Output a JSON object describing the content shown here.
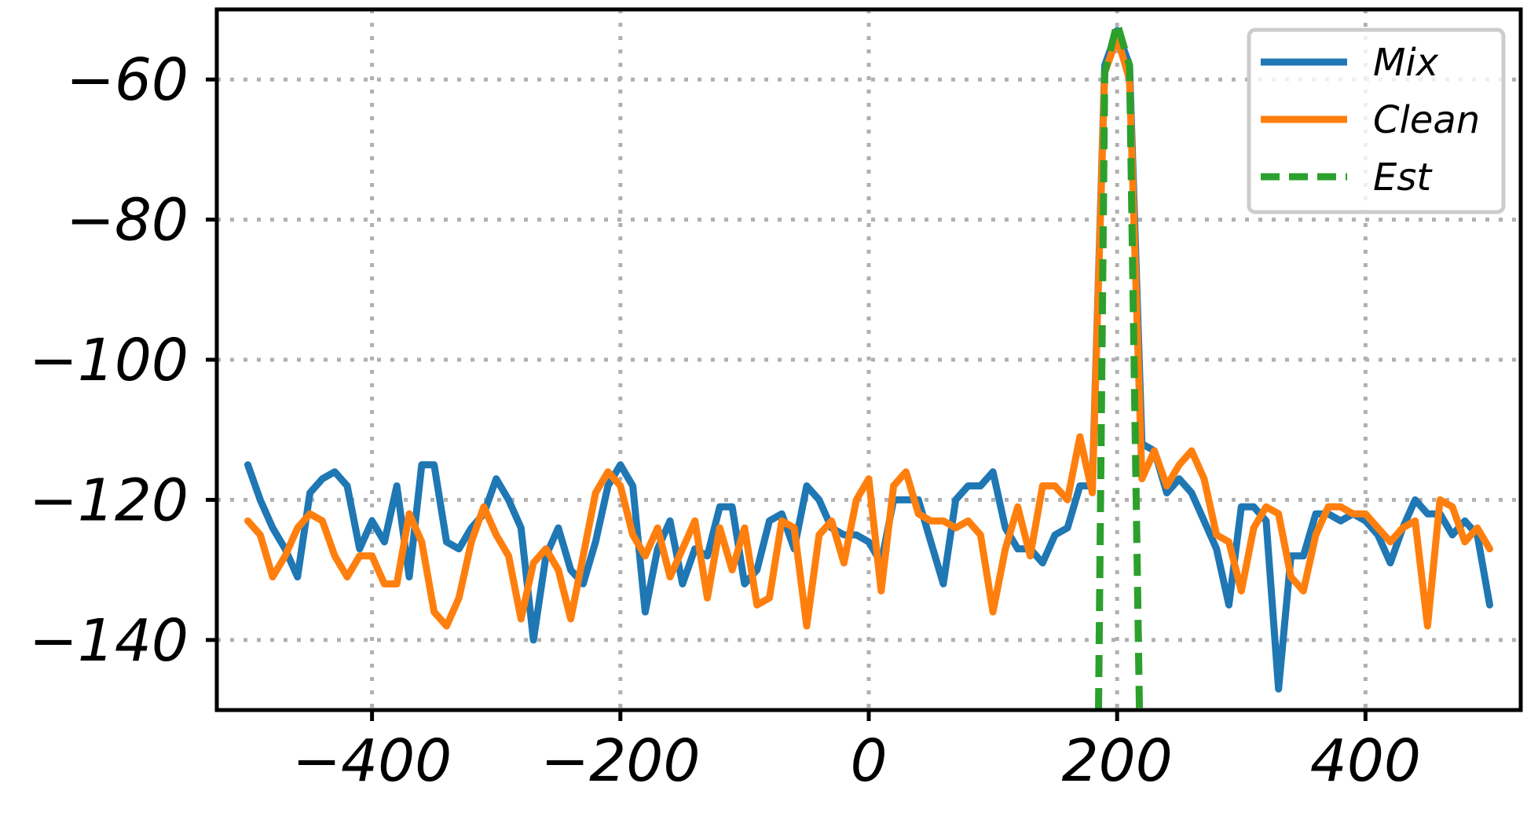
{
  "chart_data": {
    "type": "line",
    "title": "",
    "xlabel": "",
    "ylabel": "",
    "xlim": [
      -525,
      525
    ],
    "ylim": [
      -150,
      -50
    ],
    "xticks": [
      -400,
      -200,
      0,
      200,
      400
    ],
    "yticks": [
      -140,
      -120,
      -100,
      -80,
      -60
    ],
    "xtick_labels": [
      "−400",
      "−200",
      "0",
      "200",
      "400"
    ],
    "ytick_labels": [
      "−140",
      "−120",
      "−100",
      "−80",
      "−60"
    ],
    "grid": true,
    "legend_position": "top-right",
    "series": [
      {
        "name": "Mix",
        "color": "#1f77b4",
        "style": "solid",
        "x": [
          -500,
          -490,
          -480,
          -470,
          -460,
          -450,
          -440,
          -430,
          -420,
          -410,
          -400,
          -390,
          -380,
          -370,
          -360,
          -350,
          -340,
          -330,
          -320,
          -310,
          -300,
          -290,
          -280,
          -270,
          -260,
          -250,
          -240,
          -230,
          -220,
          -210,
          -200,
          -190,
          -180,
          -170,
          -160,
          -150,
          -140,
          -130,
          -120,
          -110,
          -100,
          -90,
          -80,
          -70,
          -60,
          -50,
          -40,
          -30,
          -20,
          -10,
          0,
          10,
          20,
          30,
          40,
          50,
          60,
          70,
          80,
          90,
          100,
          110,
          120,
          130,
          140,
          150,
          160,
          170,
          180,
          190,
          200,
          210,
          220,
          230,
          240,
          250,
          260,
          270,
          280,
          290,
          300,
          310,
          320,
          330,
          340,
          350,
          360,
          370,
          380,
          390,
          400,
          410,
          420,
          430,
          440,
          450,
          460,
          470,
          480,
          490,
          500
        ],
        "values": [
          -115,
          -120,
          -124,
          -127,
          -131,
          -119,
          -117,
          -116,
          -118,
          -127,
          -123,
          -126,
          -118,
          -131,
          -115,
          -115,
          -126,
          -127,
          -124,
          -122,
          -117,
          -120,
          -124,
          -140,
          -128,
          -124,
          -130,
          -132,
          -126,
          -118,
          -115,
          -118,
          -136,
          -127,
          -123,
          -132,
          -127,
          -128,
          -121,
          -121,
          -132,
          -130,
          -123,
          -122,
          -127,
          -118,
          -120,
          -124,
          -125,
          -125,
          -126,
          -129,
          -120,
          -120,
          -120,
          -126,
          -132,
          -120,
          -118,
          -118,
          -116,
          -124,
          -127,
          -127,
          -129,
          -125,
          -124,
          -118,
          -118,
          -58,
          -53,
          -58,
          -112,
          -113,
          -119,
          -117,
          -119,
          -123,
          -127,
          -135,
          -121,
          -121,
          -123,
          -147,
          -128,
          -128,
          -122,
          -122,
          -123,
          -122,
          -123,
          -125,
          -129,
          -124,
          -120,
          -122,
          -122,
          -125,
          -123,
          -125,
          -135
        ]
      },
      {
        "name": "Clean",
        "color": "#ff7f0e",
        "style": "solid",
        "x": [
          -500,
          -490,
          -480,
          -470,
          -460,
          -450,
          -440,
          -430,
          -420,
          -410,
          -400,
          -390,
          -380,
          -370,
          -360,
          -350,
          -340,
          -330,
          -320,
          -310,
          -300,
          -290,
          -280,
          -270,
          -260,
          -250,
          -240,
          -230,
          -220,
          -210,
          -200,
          -190,
          -180,
          -170,
          -160,
          -150,
          -140,
          -130,
          -120,
          -110,
          -100,
          -90,
          -80,
          -70,
          -60,
          -50,
          -40,
          -30,
          -20,
          -10,
          0,
          10,
          20,
          30,
          40,
          50,
          60,
          70,
          80,
          90,
          100,
          110,
          120,
          130,
          140,
          150,
          160,
          170,
          180,
          190,
          200,
          210,
          220,
          230,
          240,
          250,
          260,
          270,
          280,
          290,
          300,
          310,
          320,
          330,
          340,
          350,
          360,
          370,
          380,
          390,
          400,
          410,
          420,
          430,
          440,
          450,
          460,
          470,
          480,
          490,
          500
        ],
        "values": [
          -123,
          -125,
          -131,
          -128,
          -124,
          -122,
          -123,
          -128,
          -131,
          -128,
          -128,
          -132,
          -132,
          -122,
          -126,
          -136,
          -138,
          -134,
          -126,
          -121,
          -125,
          -128,
          -137,
          -129,
          -127,
          -130,
          -137,
          -128,
          -119,
          -116,
          -118,
          -125,
          -128,
          -124,
          -131,
          -127,
          -123,
          -134,
          -124,
          -130,
          -124,
          -135,
          -134,
          -123,
          -124,
          -138,
          -125,
          -123,
          -129,
          -120,
          -117,
          -133,
          -118,
          -116,
          -122,
          -123,
          -123,
          -124,
          -123,
          -125,
          -136,
          -127,
          -121,
          -128,
          -118,
          -118,
          -120,
          -111,
          -119,
          -59,
          -54,
          -60,
          -117,
          -113,
          -118,
          -115,
          -113,
          -117,
          -125,
          -126,
          -133,
          -124,
          -121,
          -122,
          -131,
          -133,
          -125,
          -121,
          -121,
          -122,
          -122,
          -124,
          -126,
          -124,
          -123,
          -138,
          -120,
          -121,
          -126,
          -124,
          -127
        ]
      },
      {
        "name": "Est",
        "color": "#2ca02c",
        "style": "dashed",
        "x": [
          185,
          190,
          200,
          210,
          218
        ],
        "values": [
          -150,
          -59,
          -52,
          -58,
          -150
        ]
      }
    ]
  }
}
